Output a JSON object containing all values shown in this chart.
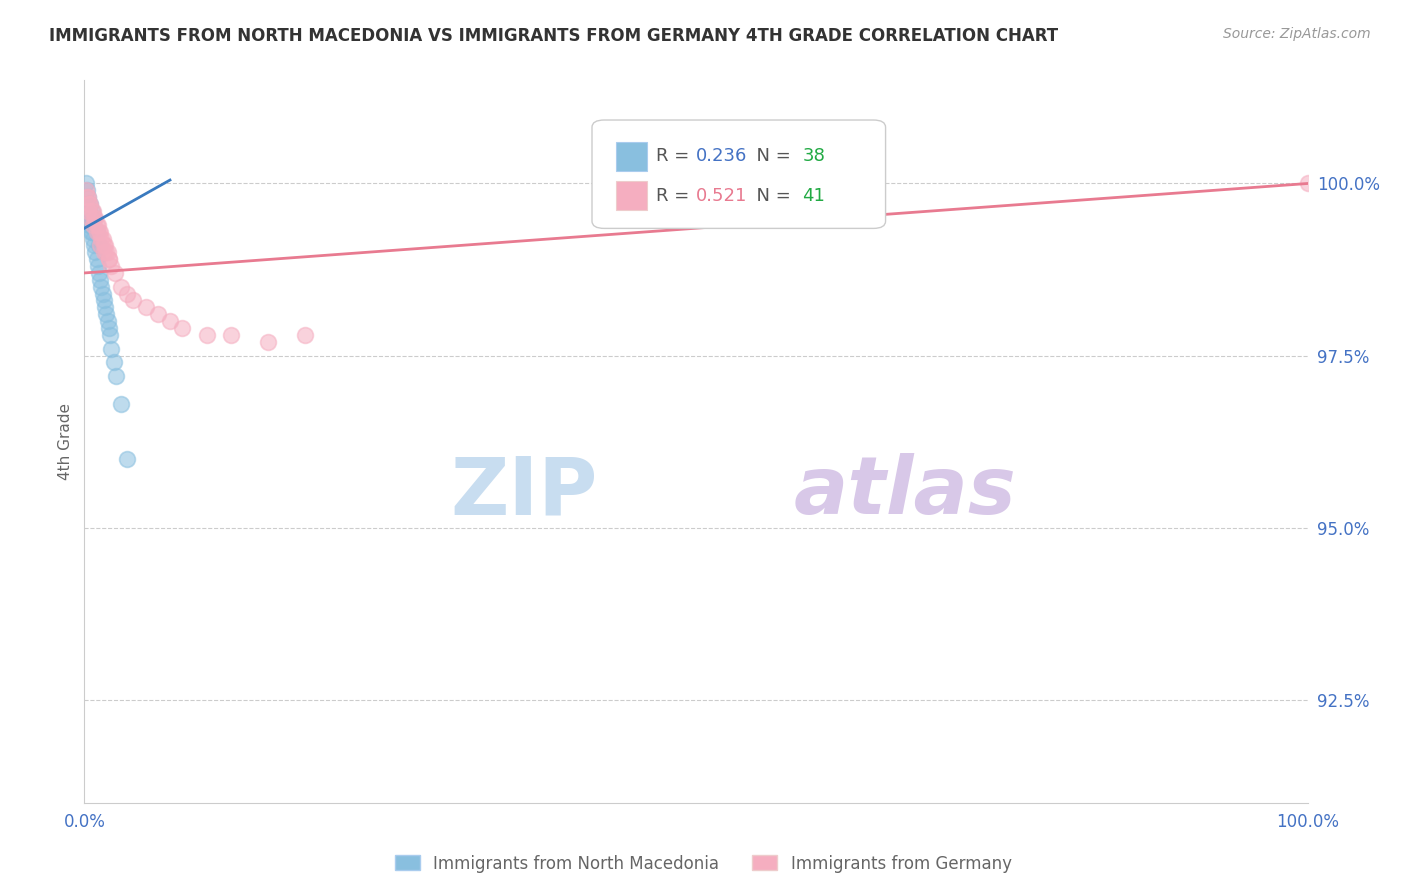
{
  "title": "IMMIGRANTS FROM NORTH MACEDONIA VS IMMIGRANTS FROM GERMANY 4TH GRADE CORRELATION CHART",
  "source": "Source: ZipAtlas.com",
  "xlabel_blue": "Immigrants from North Macedonia",
  "xlabel_pink": "Immigrants from Germany",
  "ylabel": "4th Grade",
  "xlim": [
    0.0,
    100.0
  ],
  "ylim": [
    91.0,
    101.5
  ],
  "yticks": [
    92.5,
    95.0,
    97.5,
    100.0
  ],
  "blue_R": 0.236,
  "blue_N": 38,
  "pink_R": 0.521,
  "pink_N": 41,
  "blue_color": "#89bfdf",
  "pink_color": "#f5aec0",
  "blue_line_color": "#3a7abf",
  "pink_line_color": "#e87a90",
  "grid_color": "#cccccc",
  "title_color": "#333333",
  "axis_label_color": "#4472c4",
  "watermark_color_zip": "#c8ddf0",
  "watermark_color_atlas": "#d8c8e8",
  "blue_x": [
    0.15,
    0.2,
    0.25,
    0.3,
    0.35,
    0.4,
    0.45,
    0.5,
    0.55,
    0.6,
    0.7,
    0.8,
    0.9,
    1.0,
    1.1,
    1.2,
    1.3,
    1.4,
    1.5,
    1.6,
    1.7,
    1.8,
    1.9,
    2.0,
    2.1,
    2.2,
    2.4,
    2.6,
    3.0,
    3.5,
    0.1,
    0.2,
    0.3,
    0.5,
    0.6,
    0.8,
    1.0,
    1.2
  ],
  "blue_y": [
    99.7,
    99.6,
    99.6,
    99.5,
    99.5,
    99.4,
    99.4,
    99.4,
    99.3,
    99.3,
    99.2,
    99.1,
    99.0,
    98.9,
    98.8,
    98.7,
    98.6,
    98.5,
    98.4,
    98.3,
    98.2,
    98.1,
    98.0,
    97.9,
    97.8,
    97.6,
    97.4,
    97.2,
    96.8,
    96.0,
    100.0,
    99.9,
    99.8,
    99.7,
    99.6,
    99.5,
    99.3,
    99.1
  ],
  "pink_x": [
    0.1,
    0.2,
    0.3,
    0.4,
    0.5,
    0.6,
    0.7,
    0.8,
    0.9,
    1.0,
    1.1,
    1.2,
    1.3,
    1.4,
    1.5,
    1.6,
    1.7,
    1.8,
    1.9,
    2.0,
    2.2,
    2.5,
    3.0,
    3.5,
    4.0,
    5.0,
    6.0,
    7.0,
    8.0,
    10.0,
    12.0,
    15.0,
    18.0,
    0.3,
    0.5,
    0.7,
    1.0,
    1.3,
    1.6,
    2.0,
    100.0
  ],
  "pink_y": [
    99.9,
    99.8,
    99.8,
    99.7,
    99.7,
    99.6,
    99.6,
    99.5,
    99.5,
    99.4,
    99.4,
    99.3,
    99.3,
    99.2,
    99.2,
    99.1,
    99.1,
    99.0,
    99.0,
    98.9,
    98.8,
    98.7,
    98.5,
    98.4,
    98.3,
    98.2,
    98.1,
    98.0,
    97.9,
    97.8,
    97.8,
    97.7,
    97.8,
    99.6,
    99.5,
    99.4,
    99.3,
    99.1,
    99.0,
    98.9,
    100.0
  ],
  "blue_line_x0": 0.0,
  "blue_line_y0": 99.35,
  "blue_line_x1": 7.0,
  "blue_line_y1": 100.05,
  "pink_line_x0": 0.0,
  "pink_line_y0": 98.7,
  "pink_line_x1": 100.0,
  "pink_line_y1": 100.0
}
